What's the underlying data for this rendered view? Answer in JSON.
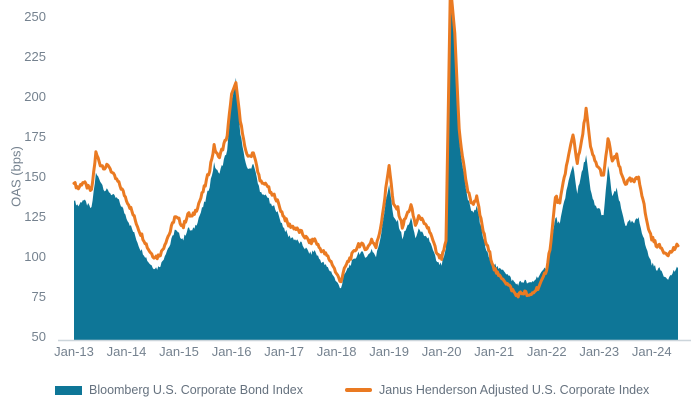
{
  "chart_data": {
    "type": "area",
    "title": "",
    "ylabel": "OAS (bps)",
    "ylim": [
      50,
      250
    ],
    "y_ticks": [
      250,
      225,
      200,
      175,
      150,
      125,
      100,
      75,
      50
    ],
    "x_tick_labels": [
      "Jan-13",
      "Jan-14",
      "Jan-15",
      "Jan-16",
      "Jan-17",
      "Jan-18",
      "Jan-19",
      "Jan-20",
      "Jan-21",
      "Jan-22",
      "Jan-23",
      "Jan-24"
    ],
    "x_start": "Jan-2013",
    "x_frequency": "monthly",
    "grid": "off",
    "legend_position": "bottom",
    "clipping_note": "Mar-Apr 2020 COVID spike exceeds 250 bps and is clipped at the top of the plot",
    "series": [
      {
        "name": "Bloomberg U.S. Corporate Bond Index",
        "style": "area",
        "color": "#0e7697",
        "values": [
          135,
          132,
          136,
          133,
          130,
          152,
          148,
          142,
          141,
          138,
          136,
          131,
          125,
          119,
          113,
          106,
          102,
          97,
          94,
          93,
          96,
          103,
          108,
          117,
          114,
          111,
          118,
          116,
          121,
          128,
          135,
          145,
          158,
          152,
          158,
          167,
          196,
          212,
          178,
          160,
          154,
          159,
          146,
          138,
          139,
          132,
          131,
          124,
          118,
          113,
          112,
          110,
          108,
          105,
          102,
          104,
          99,
          96,
          93,
          90,
          84,
          81,
          90,
          95,
          98,
          103,
          102,
          100,
          105,
          100,
          112,
          130,
          146,
          124,
          122,
          112,
          118,
          124,
          112,
          118,
          112,
          112,
          104,
          96,
          95,
          104,
          262,
          232,
          172,
          152,
          136,
          128,
          131,
          118,
          106,
          98,
          96,
          92,
          93,
          89,
          86,
          83,
          84,
          85,
          83,
          85,
          88,
          90,
          95,
          106,
          125,
          120,
          135,
          147,
          158,
          140,
          152,
          164,
          141,
          132,
          130,
          125,
          157,
          138,
          142,
          130,
          120,
          122,
          121,
          125,
          113,
          103,
          96,
          93,
          92,
          88,
          87,
          91,
          93
        ]
      },
      {
        "name": "Janus Henderson Adjusted U.S. Corporate Index",
        "style": "line",
        "color": "#ea7a22",
        "values": [
          146,
          143,
          147,
          144,
          141,
          165,
          158,
          156,
          157,
          151,
          147,
          142,
          136,
          130,
          123,
          116,
          111,
          105,
          101,
          100,
          103,
          110,
          116,
          125,
          123,
          119,
          127,
          125,
          130,
          137,
          145,
          155,
          169,
          162,
          168,
          176,
          202,
          209,
          186,
          168,
          162,
          166,
          153,
          145,
          146,
          139,
          138,
          131,
          125,
          120,
          119,
          117,
          115,
          112,
          109,
          111,
          106,
          103,
          100,
          96,
          89,
          85,
          94,
          99,
          103,
          108,
          107,
          105,
          111,
          106,
          118,
          137,
          158,
          132,
          130,
          119,
          126,
          132,
          120,
          126,
          120,
          118,
          110,
          101,
          99,
          109,
          270,
          240,
          179,
          158,
          141,
          133,
          137,
          123,
          110,
          102,
          93,
          88,
          87,
          83,
          80,
          76,
          77,
          78,
          75,
          78,
          81,
          85,
          93,
          110,
          138,
          133,
          150,
          163,
          177,
          159,
          172,
          193,
          168,
          160,
          155,
          150,
          174,
          160,
          163,
          152,
          146,
          148,
          147,
          150,
          136,
          120,
          112,
          108,
          106,
          103,
          102,
          105,
          107
        ]
      }
    ]
  },
  "colors": {
    "area_fill": "#0e7697",
    "line_stroke": "#ea7a22",
    "axis_line": "#ccd5db",
    "tick_text": "#75828f",
    "legend_text": "#66727f",
    "background": "#ffffff"
  }
}
